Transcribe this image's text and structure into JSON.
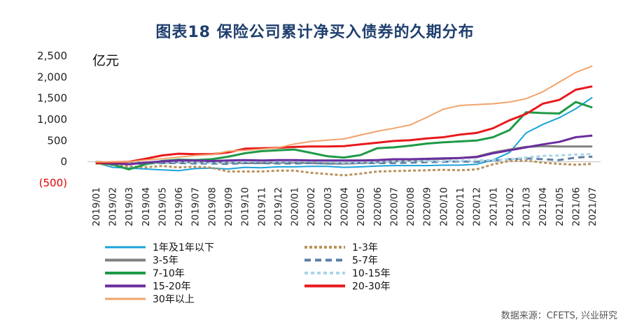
{
  "title": "图表18   保险公司累计净买入债券的久期分布",
  "source": "数据来源：CFETS, 兴业研究",
  "chart_data": {
    "type": "line",
    "title": "图表18   保险公司累计净买入债券的久期分布",
    "unit": "亿元",
    "ylim": [
      -500,
      2500
    ],
    "yticks": [
      2500,
      2000,
      1500,
      1000,
      500,
      0,
      -500
    ],
    "ytick_labels": [
      "2,500",
      "2,000",
      "1,500",
      "1,000",
      "500",
      "0",
      "(500)"
    ],
    "legend_position": "bottom",
    "x": [
      "2019/01",
      "2019/02",
      "2019/03",
      "2019/04",
      "2019/05",
      "2019/06",
      "2019/07",
      "2019/08",
      "2019/09",
      "2019/10",
      "2019/11",
      "2019/12",
      "2020/01",
      "2020/02",
      "2020/03",
      "2020/04",
      "2020/05",
      "2020/06",
      "2020/07",
      "2020/08",
      "2020/09",
      "2020/10",
      "2020/11",
      "2020/12",
      "2021/01",
      "2021/02",
      "2021/03",
      "2021/04",
      "2021/05",
      "2021/06",
      "2021/07"
    ],
    "series": [
      {
        "name": "1年及1年以下",
        "color": "#1aa3d9",
        "dash": "solid",
        "width": 2,
        "values": [
          -20,
          -130,
          -150,
          -170,
          -190,
          -210,
          -160,
          -150,
          -170,
          -130,
          -140,
          -120,
          -120,
          -110,
          -110,
          -130,
          -120,
          -100,
          -90,
          -90,
          -90,
          -80,
          -80,
          -60,
          40,
          220,
          680,
          880,
          1040,
          1250,
          1520
        ]
      },
      {
        "name": "1-3年",
        "color": "#b8935c",
        "dash": "4 3",
        "width": 3,
        "values": [
          -40,
          -80,
          -110,
          -130,
          -100,
          -130,
          -120,
          -140,
          -230,
          -230,
          -230,
          -210,
          -210,
          -260,
          -290,
          -320,
          -280,
          -230,
          -220,
          -210,
          -200,
          -190,
          -200,
          -180,
          -60,
          20,
          30,
          -20,
          -50,
          -70,
          -50
        ]
      },
      {
        "name": "3-5年",
        "color": "#808080",
        "dash": "solid",
        "width": 3,
        "values": [
          -30,
          -30,
          -40,
          -20,
          -20,
          -10,
          -10,
          -10,
          -20,
          -30,
          -30,
          -20,
          -20,
          -30,
          -40,
          -40,
          -30,
          -10,
          10,
          30,
          50,
          70,
          90,
          120,
          220,
          290,
          350,
          370,
          360,
          360,
          360
        ]
      },
      {
        "name": "5-7年",
        "color": "#5b7fa6",
        "dash": "9 6",
        "width": 3,
        "values": [
          0,
          -20,
          -50,
          -40,
          -30,
          -30,
          -40,
          -40,
          -50,
          -30,
          -30,
          -40,
          -40,
          -30,
          -40,
          -40,
          -30,
          -30,
          -30,
          -20,
          -10,
          0,
          10,
          0,
          30,
          60,
          80,
          60,
          40,
          100,
          120
        ]
      },
      {
        "name": "7-10年",
        "color": "#1f9a46",
        "dash": "solid",
        "width": 3,
        "values": [
          -30,
          -60,
          -180,
          -60,
          20,
          50,
          40,
          60,
          120,
          200,
          250,
          270,
          290,
          210,
          130,
          100,
          160,
          320,
          340,
          380,
          430,
          460,
          480,
          500,
          580,
          750,
          1170,
          1150,
          1140,
          1410,
          1280
        ]
      },
      {
        "name": "10-15年",
        "color": "#a9d5e8",
        "dash": "5 4",
        "width": 3,
        "values": [
          -10,
          -20,
          -30,
          -20,
          0,
          0,
          -10,
          -20,
          -10,
          0,
          10,
          0,
          10,
          10,
          0,
          -20,
          -10,
          0,
          10,
          20,
          20,
          20,
          30,
          30,
          40,
          60,
          100,
          140,
          150,
          170,
          180
        ]
      },
      {
        "name": "15-20年",
        "color": "#6a2d9e",
        "dash": "solid",
        "width": 3,
        "values": [
          -20,
          -40,
          -60,
          -20,
          10,
          30,
          30,
          20,
          30,
          40,
          30,
          40,
          40,
          30,
          30,
          30,
          30,
          40,
          60,
          60,
          70,
          80,
          90,
          110,
          200,
          270,
          340,
          410,
          470,
          580,
          620
        ]
      },
      {
        "name": "20-30年",
        "color": "#e8191c",
        "dash": "solid",
        "width": 3,
        "values": [
          -30,
          -10,
          0,
          70,
          150,
          190,
          180,
          180,
          220,
          310,
          320,
          330,
          350,
          360,
          360,
          370,
          410,
          450,
          490,
          510,
          550,
          580,
          640,
          680,
          790,
          980,
          1130,
          1370,
          1460,
          1700,
          1780
        ]
      },
      {
        "name": "30年以上",
        "color": "#f2a36b",
        "dash": "solid",
        "width": 2,
        "values": [
          0,
          0,
          0,
          40,
          70,
          110,
          150,
          170,
          250,
          270,
          300,
          330,
          420,
          480,
          510,
          540,
          630,
          720,
          790,
          870,
          1050,
          1240,
          1330,
          1350,
          1370,
          1410,
          1490,
          1650,
          1880,
          2110,
          2260
        ]
      }
    ]
  }
}
